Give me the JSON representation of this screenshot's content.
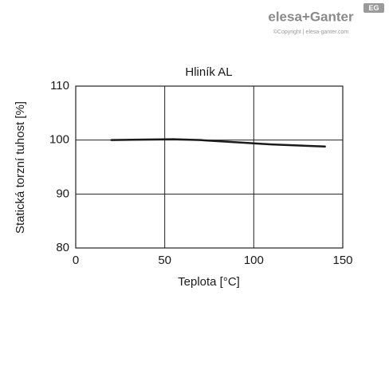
{
  "logo": {
    "brand": "elesa+Ganter",
    "copyright": "©Copyright | elesa-ganter.com",
    "badge": "EG"
  },
  "chart_data": {
    "type": "line",
    "title": "Hliník AL",
    "x_label": "Teplota [°C]",
    "y_label": "Statická torzní tuhost [%]",
    "x": [
      20,
      40,
      55,
      70,
      90,
      110,
      140
    ],
    "series": [
      {
        "name": "AL",
        "color": "#1a1a1a",
        "values": [
          100,
          100.1,
          100.15,
          100,
          99.6,
          99.2,
          98.8
        ]
      }
    ],
    "xlim": [
      0,
      150
    ],
    "xticks": [
      0,
      50,
      100,
      150
    ],
    "ylim": [
      80,
      110
    ],
    "yticks": [
      80,
      90,
      100,
      110
    ],
    "grid": true
  }
}
